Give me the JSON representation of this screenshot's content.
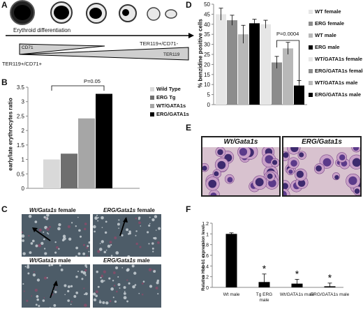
{
  "panel_labels": {
    "a": "A",
    "b": "B",
    "c": "C",
    "d": "D",
    "e": "E",
    "f": "F"
  },
  "panel_a": {
    "differentiation_label": "Erythroid differentiation",
    "cd71_label": "CD71",
    "ter119_label": "TER119",
    "left_marker": "TER119+/CD71+",
    "right_marker": "TER119+/CD71-"
  },
  "panel_b": {
    "pvalue": "P=0.05",
    "ylabel": "early/late erythrocytes ratio",
    "legend": [
      "Wild Type",
      "ERG Tg",
      "WT/GATA1s",
      "ERG/GATA1s"
    ],
    "colors": [
      "#d9d9d9",
      "#6f6f6f",
      "#a6a6a6",
      "#000000"
    ]
  },
  "panel_c": {
    "tl_genotype": "Wt/Gata1s",
    "tl_sex": " female",
    "tr_genotype": "ERG/Gata1s",
    "tr_sex": " female",
    "bl_genotype": "Wt/Gata1s",
    "bl_sex": " male",
    "br_genotype": "ERG/Gata1s",
    "br_sex": " male"
  },
  "panel_d": {
    "pvalue": "P=0.0004",
    "ylabel": "% benzidine positive cells",
    "legend": [
      "WT female",
      "ERG female",
      "WT male",
      "ERG male",
      "WT/GATA1s female",
      "ERG/GATA1s female",
      "WT/GATA1s male",
      "ERG/GATA1s male"
    ],
    "colors": [
      "#e6e6e6",
      "#8c8c8c",
      "#b8b8b8",
      "#000000",
      "#e6e6e6",
      "#8c8c8c",
      "#b8b8b8",
      "#000000"
    ]
  },
  "panel_e": {
    "left_title": "Wt/Gata1s",
    "right_title": "ERG/Gata1s"
  },
  "panel_f": {
    "ylabel": "Relative Hbb-b1 expression level",
    "star": "*"
  },
  "chart_data": [
    {
      "type": "bar",
      "title": "",
      "xlabel": "",
      "ylabel": "early/late erythrocytes ratio",
      "categories": [
        "Wild Type",
        "ERG Tg",
        "WT/GATA1s",
        "ERG/GATA1s"
      ],
      "values": [
        1.0,
        1.2,
        2.42,
        3.27
      ],
      "ylim": [
        0,
        3.5
      ],
      "yticks": [
        "0",
        "0.5",
        "1",
        "1.5",
        "2",
        "2.5",
        "3",
        "3.5"
      ],
      "legend_placement": "top-right",
      "annotation": "P=0.05"
    },
    {
      "type": "bar",
      "title": "",
      "xlabel": "",
      "ylabel": "% benzidine positive cells",
      "categories": [
        "WT female",
        "ERG female",
        "WT male",
        "ERG male",
        "WT/GATA1s female",
        "ERG/GATA1s female",
        "WT/GATA1s male",
        "ERG/GATA1s male"
      ],
      "values": [
        45,
        42,
        35,
        40.5,
        40,
        21,
        28,
        9.5
      ],
      "errors": [
        3,
        2.5,
        4.5,
        2,
        2,
        3,
        3,
        2.5
      ],
      "ylim": [
        0,
        50
      ],
      "yticks": [
        "0",
        "5",
        "10",
        "15",
        "20",
        "25",
        "30",
        "35",
        "40",
        "45",
        "50"
      ],
      "legend_placement": "right",
      "annotation": "P=0.0004"
    },
    {
      "type": "bar",
      "title": "",
      "xlabel": "",
      "ylabel": "Relative Hbb-b1 expression level",
      "categories": [
        "Wt male",
        "Tg ERG male",
        "Wt/GATA1s male",
        "ERG/GATA1s male"
      ],
      "values": [
        1.0,
        0.1,
        0.07,
        0.02
      ],
      "errors": [
        0.02,
        0.15,
        0.08,
        0.06
      ],
      "ylim": [
        0,
        1.2
      ],
      "yticks": [
        "0",
        "0.2",
        "0.4",
        "0.6",
        "0.8",
        "1",
        "1.2"
      ],
      "significance": [
        "",
        "*",
        "*",
        "*"
      ]
    }
  ]
}
